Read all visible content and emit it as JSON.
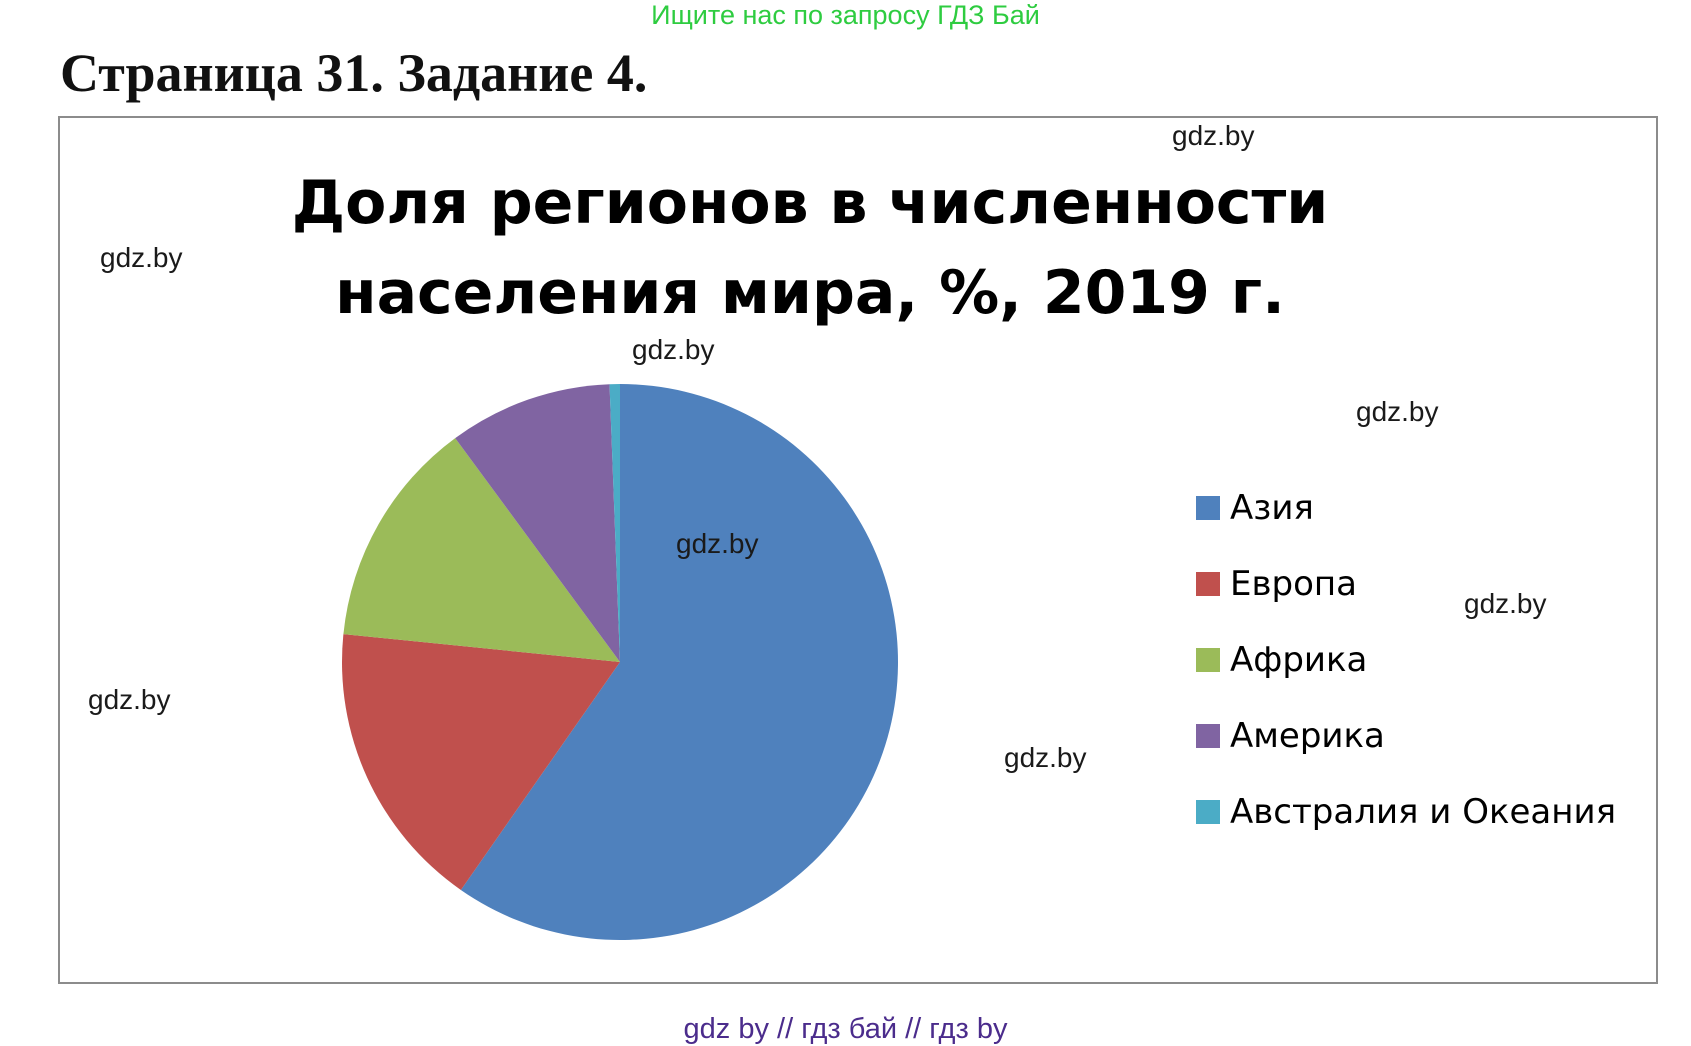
{
  "banner": "Ищите нас по запросу ГДЗ Бай",
  "heading": "Страница 31. Задание 4.",
  "watermark_text": "gdz.by",
  "footer": "gdz by  //  гдз бай  //  гдз by",
  "chart_data": {
    "type": "pie",
    "title_line1": "Доля регионов в численности",
    "title_line2": "населения мира, %, 2019 г.",
    "legend_position": "right",
    "categories": [
      "Азия",
      "Европа",
      "Африка",
      "Америка",
      "Австралия и Океания"
    ],
    "values": [
      59.7,
      16.9,
      13.3,
      9.5,
      0.6
    ],
    "colors": [
      "#4f81bd",
      "#c0504d",
      "#9bbb59",
      "#8064a2",
      "#4bacc6"
    ]
  }
}
